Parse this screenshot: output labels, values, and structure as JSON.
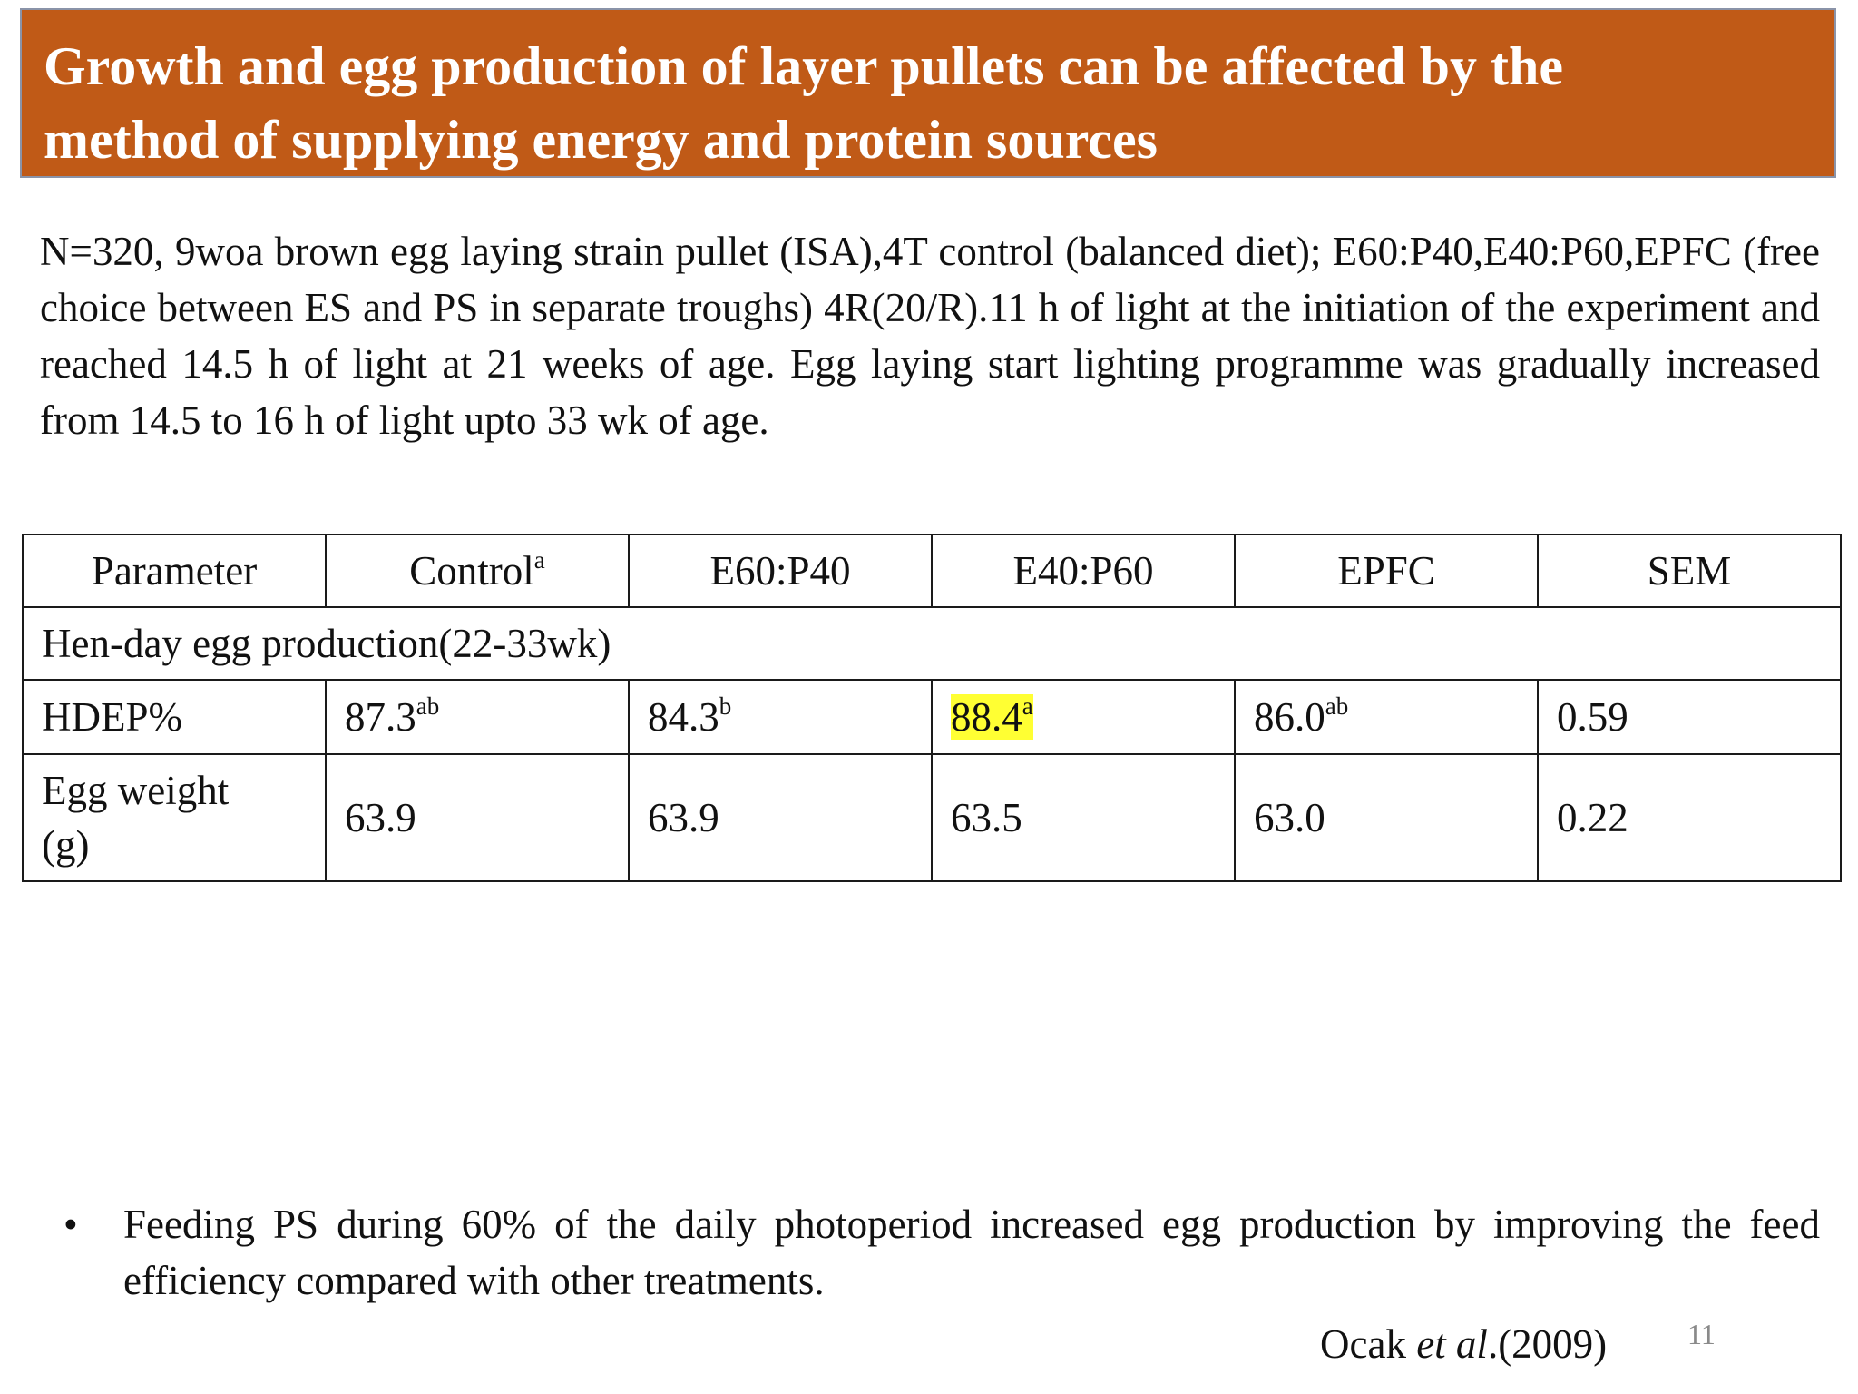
{
  "title": {
    "line1": "Growth and egg production of layer pullets can be affected by the",
    "line2": "method of supplying energy and protein sources"
  },
  "intro": "N=320, 9woa brown egg laying strain pullet (ISA),4T control (balanced diet); E60:P40,E40:P60,EPFC (free choice between ES and PS in separate troughs) 4R(20/R).11 h of light at the initiation of the experiment and reached 14.5 h of light at 21 weeks of age. Egg laying start lighting programme was gradually increased from 14.5 to 16 h of light upto 33 wk of age.",
  "table": {
    "headers": {
      "parameter": "Parameter",
      "control": "Control",
      "control_sup": "a",
      "e60p40": "E60:P40",
      "e40p60": "E40:P60",
      "epfc": "EPFC",
      "sem": "SEM"
    },
    "section": "Hen-day egg production(22-33wk)",
    "hdep": {
      "label": "HDEP%",
      "control": "87.3",
      "control_sup": "ab",
      "e60p40": "84.3",
      "e60p40_sup": "b",
      "e40p60": "88.4",
      "e40p60_sup": "a",
      "epfc": "86.0",
      "epfc_sup": "ab",
      "sem": "0.59"
    },
    "egg_weight": {
      "label_line1": "Egg weight",
      "label_line2": "(g)",
      "control": "63.9",
      "e60p40": "63.9",
      "e40p60": "63.5",
      "epfc": "63.0",
      "sem": "0.22"
    }
  },
  "bullet": "Feeding PS during 60% of the daily photoperiod increased egg production by improving the feed efficiency compared with other treatments.",
  "citation": {
    "author": "Ocak ",
    "etal": "et al",
    "year": ".(2009)"
  },
  "page_number": "11",
  "colors": {
    "title_bg": "#c05a17",
    "highlight": "#ffff33"
  }
}
